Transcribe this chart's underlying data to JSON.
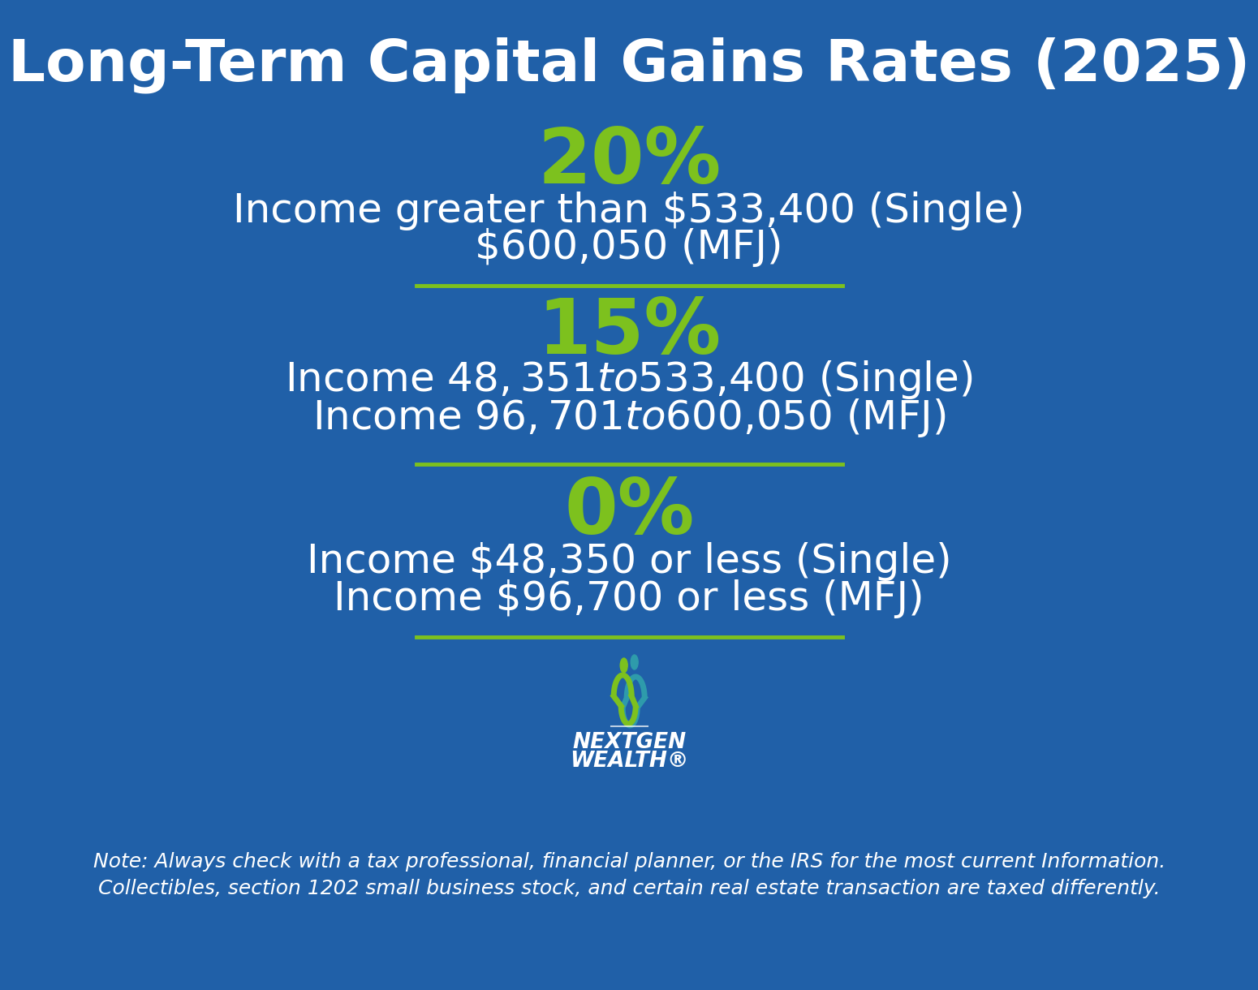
{
  "title": "Long-Term Capital Gains Rates (2025)",
  "bg_color": "#2060A8",
  "title_color": "#FFFFFF",
  "rate_color": "#7DC11E",
  "desc_color": "#FFFFFF",
  "note_color": "#FFFFFF",
  "divider_color": "#7DC11E",
  "title_fontsize": 52,
  "rate_fontsize": 68,
  "desc_fontsize": 36,
  "note_fontsize": 18,
  "brackets": [
    {
      "rate": "20%",
      "lines": [
        "Income greater than $533,400 (Single)",
        "$600,050 (MFJ)"
      ]
    },
    {
      "rate": "15%",
      "lines": [
        "Income $48,351 to $533,400 (Single)",
        "Income $96,701 to $600,050 (MFJ)"
      ]
    },
    {
      "rate": "0%",
      "lines": [
        "Income $48,350 or less (Single)",
        "Income $96,700 or less (MFJ)"
      ]
    }
  ],
  "note_line1": "Note: Always check with a tax professional, financial planner, or the IRS for the most current Information.",
  "note_line2": "Collectibles, section 1202 small business stock, and certain real estate transaction are taxed differently.",
  "logo_text_line1": "NextGen",
  "logo_text_line2": "Wealth®",
  "green_color": "#7DC11E",
  "teal_color": "#2E9BAB"
}
